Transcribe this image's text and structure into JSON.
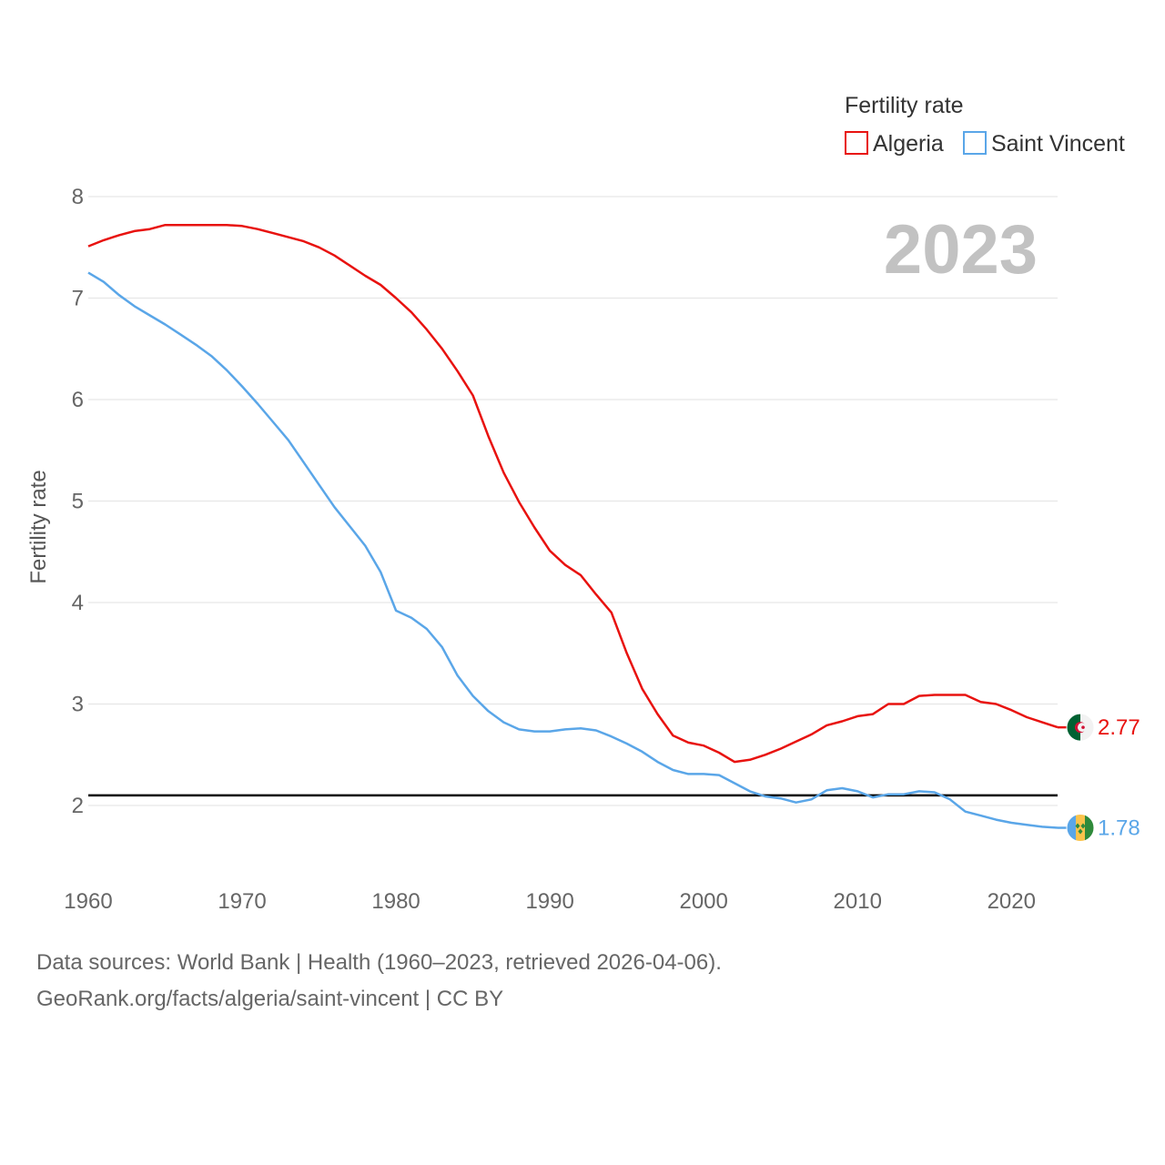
{
  "chart_data": {
    "type": "line",
    "title": "Fertility rate",
    "ylabel": "Fertility rate",
    "xlabel": "",
    "year_label": "2023",
    "xlim": [
      1960,
      2023
    ],
    "ylim": [
      1.35,
      8.2
    ],
    "x_ticks": [
      1960,
      1970,
      1980,
      1990,
      2000,
      2010,
      2020
    ],
    "y_ticks": [
      2,
      3,
      4,
      5,
      6,
      7,
      8
    ],
    "reference_line": 2.1,
    "x": [
      1960,
      1961,
      1962,
      1963,
      1964,
      1965,
      1966,
      1967,
      1968,
      1969,
      1970,
      1971,
      1972,
      1973,
      1974,
      1975,
      1976,
      1977,
      1978,
      1979,
      1980,
      1981,
      1982,
      1983,
      1984,
      1985,
      1986,
      1987,
      1988,
      1989,
      1990,
      1991,
      1992,
      1993,
      1994,
      1995,
      1996,
      1997,
      1998,
      1999,
      2000,
      2001,
      2002,
      2003,
      2004,
      2005,
      2006,
      2007,
      2008,
      2009,
      2010,
      2011,
      2012,
      2013,
      2014,
      2015,
      2016,
      2017,
      2018,
      2019,
      2020,
      2021,
      2022,
      2023
    ],
    "series": [
      {
        "name": "Algeria",
        "color": "#e8120f",
        "end_label": "2.77",
        "flag_icon": "algeria-flag-icon",
        "values": [
          7.51,
          7.57,
          7.62,
          7.66,
          7.68,
          7.72,
          7.72,
          7.72,
          7.72,
          7.72,
          7.71,
          7.68,
          7.64,
          7.6,
          7.56,
          7.5,
          7.42,
          7.32,
          7.22,
          7.13,
          7.0,
          6.86,
          6.69,
          6.5,
          6.28,
          6.04,
          5.64,
          5.28,
          4.99,
          4.74,
          4.51,
          4.37,
          4.27,
          4.08,
          3.9,
          3.5,
          3.15,
          2.9,
          2.69,
          2.62,
          2.59,
          2.52,
          2.43,
          2.45,
          2.5,
          2.56,
          2.63,
          2.7,
          2.79,
          2.83,
          2.88,
          2.9,
          3.0,
          3.0,
          3.08,
          3.09,
          3.09,
          3.09,
          3.02,
          3.0,
          2.94,
          2.87,
          2.82,
          2.77
        ]
      },
      {
        "name": "Saint Vincent",
        "color": "#5aa6e8",
        "end_label": "1.78",
        "flag_icon": "saint-vincent-flag-icon",
        "values": [
          7.25,
          7.16,
          7.03,
          6.92,
          6.83,
          6.74,
          6.64,
          6.54,
          6.43,
          6.29,
          6.13,
          5.96,
          5.78,
          5.6,
          5.38,
          5.16,
          4.94,
          4.75,
          4.56,
          4.3,
          3.92,
          3.85,
          3.74,
          3.56,
          3.28,
          3.08,
          2.93,
          2.82,
          2.75,
          2.73,
          2.73,
          2.75,
          2.76,
          2.74,
          2.68,
          2.61,
          2.53,
          2.43,
          2.35,
          2.31,
          2.31,
          2.3,
          2.22,
          2.14,
          2.09,
          2.07,
          2.03,
          2.06,
          2.15,
          2.17,
          2.14,
          2.08,
          2.11,
          2.11,
          2.14,
          2.13,
          2.06,
          1.94,
          1.9,
          1.86,
          1.83,
          1.81,
          1.79,
          1.78
        ]
      }
    ]
  },
  "legend": {
    "title": "Fertility rate",
    "items": [
      "Algeria",
      "Saint Vincent"
    ]
  },
  "footer": {
    "line1": "Data sources: World Bank | Health (1960–2023, retrieved 2026-04-06).",
    "line2": "GeoRank.org/facts/algeria/saint-vincent | CC BY"
  }
}
